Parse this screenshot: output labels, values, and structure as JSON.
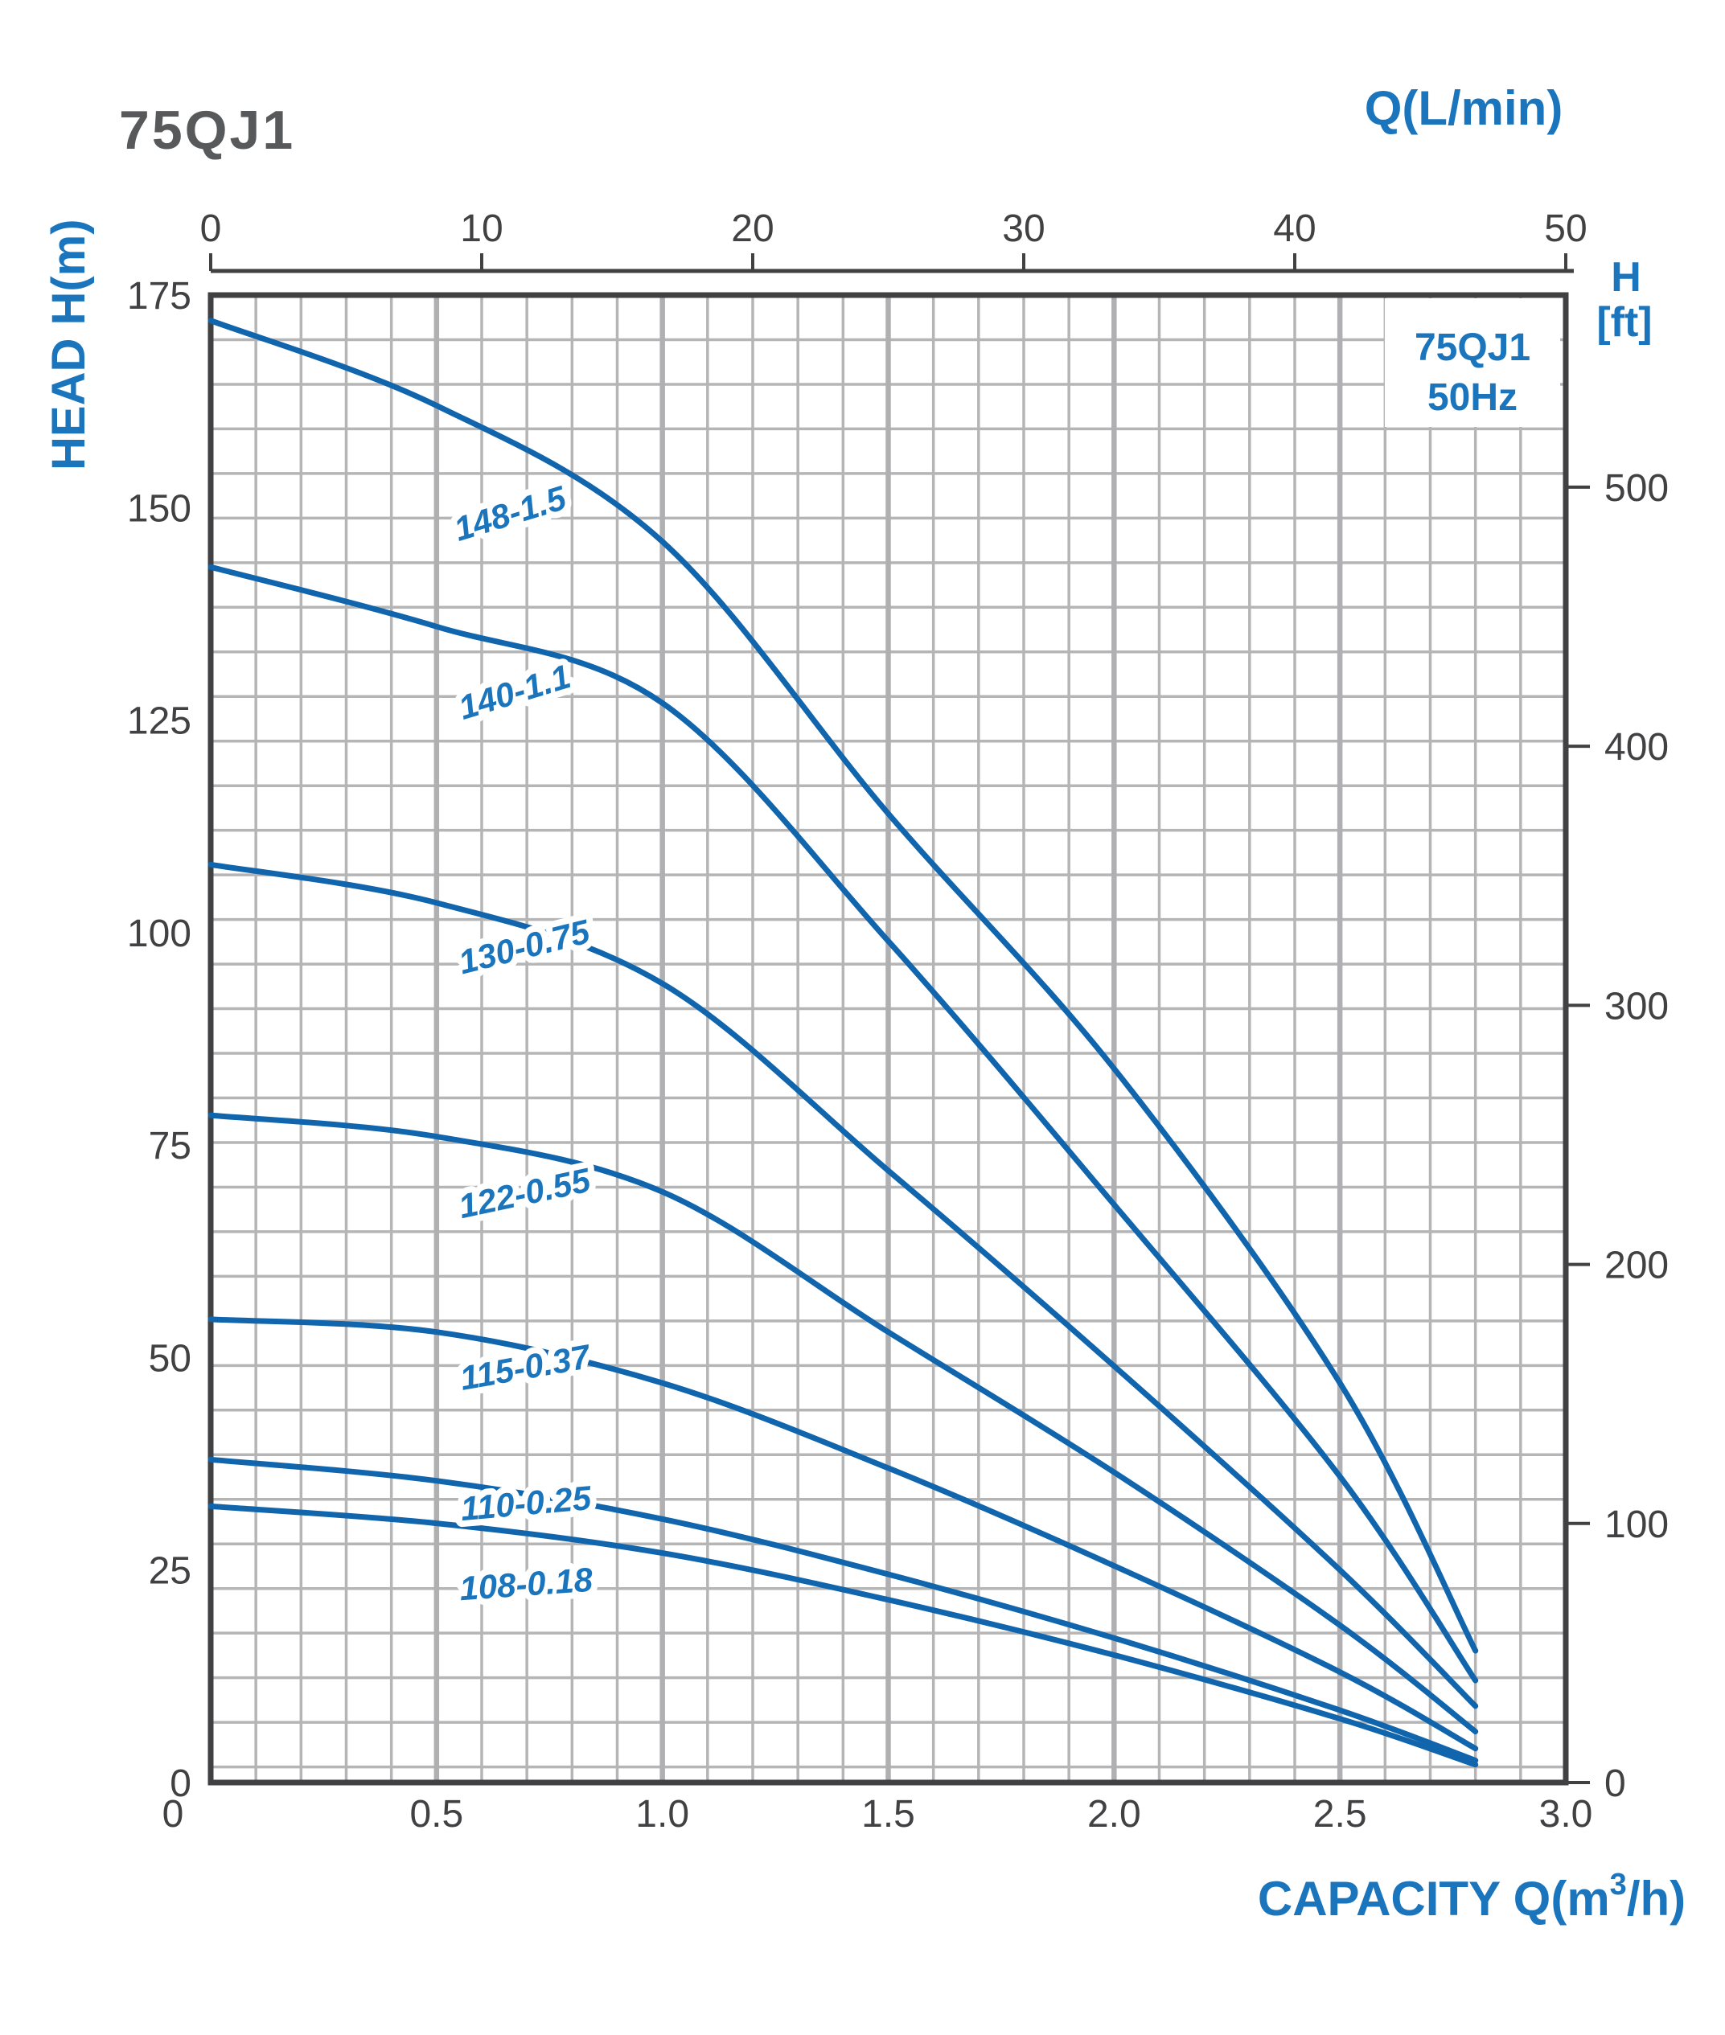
{
  "header": {
    "title": "75QJ1"
  },
  "legend": {
    "line1": "75QJ1",
    "line2": "50Hz"
  },
  "axes": {
    "top": {
      "title": "Q(L/min)",
      "ticks": [
        "0",
        "10",
        "20",
        "30",
        "40",
        "50"
      ],
      "max": 50
    },
    "left": {
      "title": "HEAD H(m)",
      "ticks": [
        "175",
        "150",
        "125",
        "100",
        "75",
        "50",
        "25",
        "0"
      ],
      "max": 175
    },
    "right": {
      "title_line1": "H",
      "title_line2": "[ft]",
      "ticks": [
        "500",
        "400",
        "300",
        "200",
        "100",
        "0"
      ],
      "unit_per_m": 3.28084
    },
    "bottom": {
      "title_parts": {
        "pre": "CAPACITY Q(m",
        "sup": "3",
        "post": "/h)"
      },
      "ticks": [
        "0",
        "0.5",
        "1.0",
        "1.5",
        "2.0",
        "2.5",
        "3.0"
      ],
      "max": 3.0
    }
  },
  "colors": {
    "curve_blue": "#1065ad",
    "label_blue": "#1b75bc",
    "axis_gray": "#414042",
    "title_gray": "#58595b",
    "grid_gray": "#b5b5b6"
  },
  "chart_data": {
    "type": "line",
    "title": "75QJ1 50Hz",
    "xlabel": "CAPACITY Q(m³/h)",
    "x2label": "Q(L/min)",
    "ylabel": "HEAD H(m)",
    "y2label": "H [ft]",
    "xlim": [
      0,
      3.0
    ],
    "ylim": [
      0,
      175
    ],
    "x2lim": [
      0,
      50
    ],
    "y2lim": [
      0,
      574
    ],
    "grid": true,
    "legend_position": "top-right",
    "series": [
      {
        "name": "148-1.5",
        "points": [
          [
            0,
            172
          ],
          [
            0.5,
            162
          ],
          [
            1.0,
            146
          ],
          [
            1.5,
            114
          ],
          [
            2.0,
            84
          ],
          [
            2.5,
            47
          ],
          [
            2.8,
            15.5
          ]
        ],
        "label_pos": {
          "q": 0.67,
          "h": 148,
          "angle": -17
        }
      },
      {
        "name": "140-1.1",
        "points": [
          [
            0,
            143
          ],
          [
            0.5,
            136
          ],
          [
            1.0,
            127
          ],
          [
            1.5,
            99
          ],
          [
            2.0,
            68
          ],
          [
            2.5,
            36
          ],
          [
            2.8,
            12
          ]
        ],
        "label_pos": {
          "q": 0.68,
          "h": 127,
          "angle": -17
        }
      },
      {
        "name": "130-0.75",
        "points": [
          [
            0,
            108
          ],
          [
            0.5,
            103.5
          ],
          [
            1.0,
            94
          ],
          [
            1.5,
            72
          ],
          [
            2.0,
            49
          ],
          [
            2.5,
            25
          ],
          [
            2.8,
            9
          ]
        ],
        "label_pos": {
          "q": 0.7,
          "h": 97,
          "angle": -14
        }
      },
      {
        "name": "122-0.55",
        "points": [
          [
            0,
            78.5
          ],
          [
            0.5,
            76
          ],
          [
            1.0,
            69.5
          ],
          [
            1.5,
            53
          ],
          [
            2.0,
            36.5
          ],
          [
            2.5,
            18.5
          ],
          [
            2.8,
            6
          ]
        ],
        "label_pos": {
          "q": 0.7,
          "h": 68,
          "angle": -12
        }
      },
      {
        "name": "115-0.37",
        "points": [
          [
            0,
            54.5
          ],
          [
            0.5,
            53
          ],
          [
            1.0,
            47
          ],
          [
            1.5,
            37
          ],
          [
            2.0,
            25.5
          ],
          [
            2.5,
            13
          ],
          [
            2.8,
            4
          ]
        ],
        "label_pos": {
          "q": 0.7,
          "h": 47.5,
          "angle": -10
        }
      },
      {
        "name": "110-0.25",
        "points": [
          [
            0,
            38
          ],
          [
            0.5,
            35.5
          ],
          [
            1.0,
            31
          ],
          [
            1.5,
            24.5
          ],
          [
            2.0,
            17
          ],
          [
            2.5,
            8.5
          ],
          [
            2.8,
            2.6
          ]
        ],
        "label_pos": {
          "q": 0.7,
          "h": 31.5,
          "angle": -5
        }
      },
      {
        "name": "108-0.18",
        "points": [
          [
            0,
            32.5
          ],
          [
            0.5,
            30.5
          ],
          [
            1.0,
            27
          ],
          [
            1.5,
            21.5
          ],
          [
            2.0,
            15
          ],
          [
            2.5,
            7.5
          ],
          [
            2.8,
            2.1
          ]
        ],
        "label_pos": {
          "q": 0.7,
          "h": 22,
          "angle": -4
        }
      }
    ]
  }
}
